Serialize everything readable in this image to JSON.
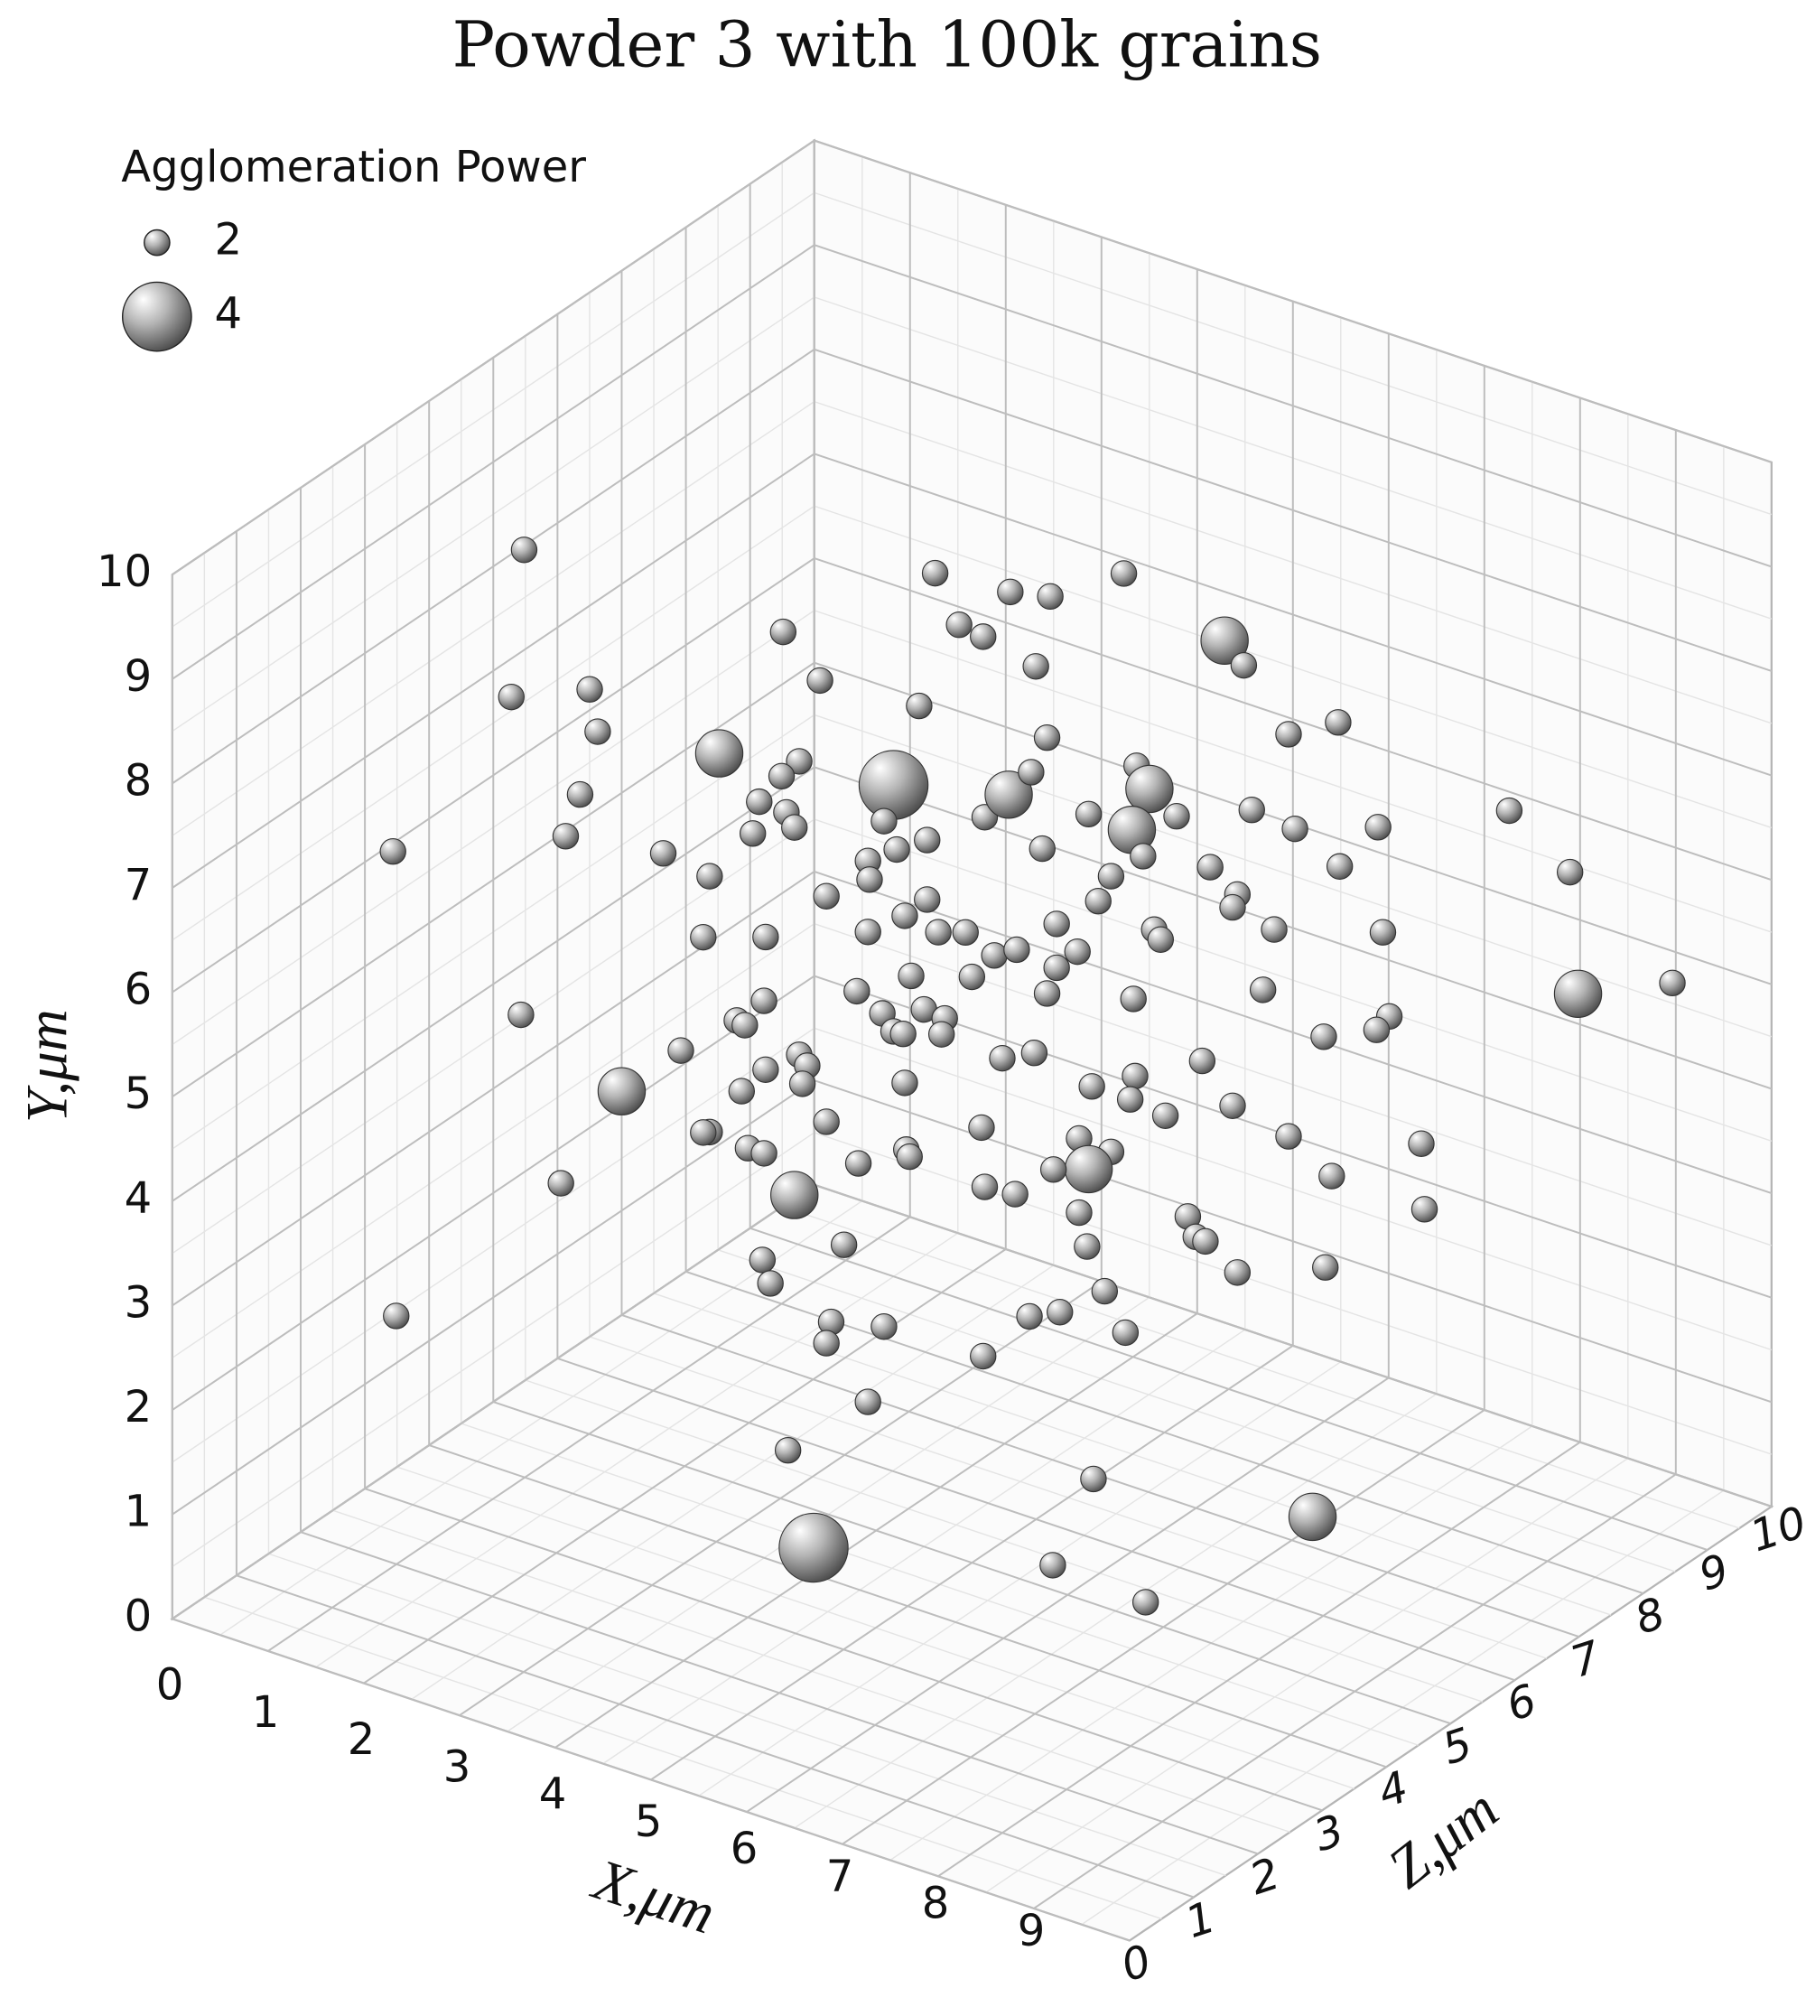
{
  "chart_data": {
    "type": "scatter3d",
    "title": "Powder 3 with 100k grains",
    "x_label": "X,μm",
    "y_label": "Y,μm",
    "z_label": "Z,μm",
    "legend_title": "Agglomeration Power",
    "size_legend": [
      2,
      4
    ],
    "color": "#444444",
    "grid": true,
    "xlim": [
      0,
      10
    ],
    "ylim": [
      0,
      10
    ],
    "zlim": [
      0,
      10
    ],
    "xticks": [
      0,
      1,
      2,
      3,
      4,
      5,
      6,
      7,
      8,
      9
    ],
    "yticks": [
      0,
      1,
      2,
      3,
      4,
      5,
      6,
      7,
      8,
      9,
      10
    ],
    "zticks": [
      0,
      1,
      2,
      3,
      4,
      5,
      6,
      7,
      8,
      9,
      10
    ],
    "points": {
      "x": [
        2.2,
        1.38,
        2.12,
        2.61,
        2.66,
        2.55,
        2.46,
        2.18,
        2.43,
        1.4,
        3.42,
        2.81,
        3.07,
        3.36,
        3.32,
        3.18,
        3.36,
        3.82,
        4.05,
        3.92,
        3.81,
        3.67,
        3.84,
        3.63,
        3.89,
        3.71,
        3.7,
        3.53,
        3.58,
        3.92,
        3.97,
        3.71,
        3.94,
        3.56,
        3.32,
        3.6,
        3.7,
        3.89,
        3.69,
        3.74,
        3.85,
        4.01,
        4.2,
        4.12,
        4.09,
        4.45,
        4.35,
        4.09,
        4.29,
        4.59,
        4.61,
        4.58,
        4.51,
        4.77,
        4.92,
        5.07,
        5.24,
        5.49,
        5.95,
        5.4,
        4.67,
        4.45,
        4.53,
        4.35,
        4.36,
        4.72,
        4.09,
        4.72,
        4.35,
        4.58,
        4.79,
        4.96,
        4.62,
        4.28,
        4.44,
        4.7,
        4.83,
        4.51,
        4.57,
        4.81,
        5.0,
        5.14,
        5.28,
        5.08,
        5.23,
        5.37,
        5.47,
        5.44,
        5.73,
        6.03,
        6.11,
        6.0,
        6.28,
        6.07,
        5.87,
        5.79,
        5.66,
        5.53,
        5.53,
        5.47,
        5.19,
        5.39,
        5.06,
        5.08,
        5.27,
        5.75,
        6.02,
        5.99,
        5.67,
        5.87,
        5.73,
        5.51,
        5.67,
        5.72,
        5.83,
        5.96,
        5.55,
        5.36,
        5.07,
        5.76,
        5.59,
        6.62,
        7.13,
        6.58,
        6.7,
        6.98,
        7.29,
        6.75,
        7.02,
        7.54,
        7.3,
        6.49,
        6.66,
        6.63,
        6.89,
        6.14,
        6.18,
        7.57,
        6.01,
        6.82,
        7.61,
        7.53,
        7.2,
        6.44,
        6.21,
        6.63,
        6.98,
        7.25,
        7.81,
        7.83,
        6.35,
        6.4,
        6.46,
        6.66,
        7.21,
        8.36,
        8.74,
        8.79,
        9.38
      ],
      "y": [
        10.0,
        7.2,
        8.6,
        8.62,
        8.21,
        7.62,
        7.23,
        5.55,
        3.91,
        2.75,
        7.92,
        4.75,
        7.0,
        6.75,
        6.17,
        5.1,
        4.3,
        9.04,
        8.55,
        7.79,
        7.66,
        7.43,
        7.31,
        7.13,
        7.16,
        6.13,
        5.52,
        5.35,
        5.3,
        4.98,
        4.87,
        4.86,
        4.7,
        4.67,
        4.3,
        4.12,
        4.06,
        3.64,
        3.04,
        2.81,
        1.2,
        0.25,
        3.13,
        2.4,
        2.2,
        2.32,
        1.61,
        4.32,
        3.9,
        4.0,
        3.93,
        4.64,
        7.5,
        9.5,
        8.99,
        8.86,
        9.27,
        9.2,
        9.37,
        8.54,
        8.24,
        7.16,
        6.88,
        6.79,
        6.61,
        6.95,
        6.48,
        6.38,
        6.11,
        6.24,
        6.06,
        6.04,
        5.66,
        5.55,
        5.32,
        5.33,
        5.23,
        5.14,
        5.11,
        5.08,
        5.61,
        5.8,
        5.84,
        7.13,
        7.33,
        7.53,
        7.85,
        6.79,
        7.09,
        7.52,
        7.29,
        6.91,
        7.01,
        6.65,
        6.48,
        6.25,
        5.78,
        6.06,
        5.64,
        5.4,
        4.81,
        4.84,
        4.16,
        3.59,
        3.5,
        4.48,
        4.55,
        4.33,
        3.99,
        3.84,
        3.69,
        3.71,
        3.28,
        2.95,
        2.51,
        2.1,
        2.34,
        2.32,
        1.97,
        0.72,
        0,
        0,
        0.21,
        8.66,
        8.41,
        7.72,
        7.8,
        7.02,
        6.81,
        6.77,
        6.42,
        6.5,
        6.22,
        6.1,
        5.86,
        5.94,
        5.84,
        5.76,
        5.29,
        5.29,
        4.95,
        4.83,
        4.8,
        4.65,
        4.15,
        4.2,
        3.87,
        3.46,
        3.71,
        3.08,
        3.17,
        2.97,
        2.92,
        2.6,
        2.59,
        6.84,
        6.21,
        5.04,
        5.08
      ],
      "z": [
        2.2,
        1.38,
        2.12,
        2.61,
        2.66,
        2.55,
        2.46,
        2.18,
        2.43,
        1.4,
        3.42,
        2.81,
        3.07,
        3.36,
        3.32,
        3.18,
        3.36,
        3.82,
        4.05,
        3.92,
        3.81,
        3.67,
        3.84,
        3.63,
        3.89,
        3.71,
        3.7,
        3.53,
        3.58,
        3.92,
        3.97,
        3.71,
        3.94,
        3.56,
        3.32,
        3.6,
        3.7,
        3.89,
        3.69,
        3.74,
        3.85,
        4.01,
        4.2,
        4.12,
        4.09,
        4.45,
        4.35,
        4.09,
        4.29,
        4.59,
        4.61,
        4.58,
        4.51,
        4.77,
        4.92,
        5.07,
        5.24,
        5.49,
        5.95,
        5.4,
        4.67,
        4.45,
        4.53,
        4.35,
        4.36,
        4.72,
        4.09,
        4.72,
        4.35,
        4.58,
        4.79,
        4.96,
        4.62,
        4.28,
        4.44,
        4.7,
        4.83,
        4.51,
        4.57,
        4.81,
        5.0,
        5.14,
        5.28,
        5.08,
        5.23,
        5.37,
        5.47,
        5.44,
        5.73,
        6.03,
        6.11,
        6.0,
        6.28,
        6.07,
        5.87,
        5.79,
        5.66,
        5.53,
        5.53,
        5.47,
        5.19,
        5.39,
        5.06,
        5.08,
        5.27,
        5.75,
        6.02,
        5.99,
        5.67,
        5.87,
        5.73,
        5.51,
        5.67,
        5.72,
        5.83,
        5.96,
        5.55,
        5.36,
        5.07,
        5.76,
        5.38,
        5.29,
        7.13,
        6.58,
        6.7,
        6.98,
        7.29,
        6.75,
        7.02,
        7.54,
        7.3,
        6.49,
        6.66,
        6.63,
        6.89,
        6.14,
        6.18,
        7.57,
        6.01,
        6.82,
        7.61,
        7.53,
        7.2,
        6.44,
        6.21,
        6.63,
        6.98,
        7.25,
        7.81,
        7.83,
        6.35,
        6.4,
        6.46,
        6.66,
        7.21,
        8.36,
        8.74,
        8.79,
        9.38
      ],
      "size": [
        2,
        2,
        2,
        2,
        2,
        2,
        2,
        2,
        2,
        2,
        3,
        3,
        2,
        2,
        2,
        2,
        2,
        2,
        2,
        2,
        2,
        2,
        2,
        2,
        2,
        2,
        2,
        2,
        2,
        2,
        2,
        2,
        2,
        2,
        2,
        2,
        2,
        3,
        2,
        2,
        2,
        4,
        2,
        2,
        2,
        2,
        2,
        2,
        2,
        2,
        2,
        2,
        4,
        2,
        2,
        2,
        2,
        2,
        2,
        2,
        2,
        2,
        2,
        2,
        2,
        2,
        2,
        2,
        2,
        2,
        2,
        2,
        2,
        2,
        2,
        2,
        2,
        2,
        2,
        2,
        2,
        2,
        2,
        2,
        3,
        2,
        2,
        2,
        2,
        2,
        3,
        3,
        2,
        2,
        2,
        2,
        2,
        2,
        2,
        2,
        2,
        2,
        2,
        2,
        2,
        2,
        2,
        2,
        2,
        2,
        3,
        2,
        2,
        2,
        2,
        2,
        2,
        2,
        2,
        2,
        2,
        2,
        3,
        3,
        2,
        2,
        2,
        2,
        2,
        2,
        2,
        2,
        2,
        2,
        2,
        2,
        2,
        2,
        2,
        2,
        2,
        2,
        2,
        2,
        2,
        2,
        2,
        2,
        2,
        2,
        2,
        2,
        2,
        2,
        2,
        2,
        2,
        3,
        2
      ]
    }
  }
}
